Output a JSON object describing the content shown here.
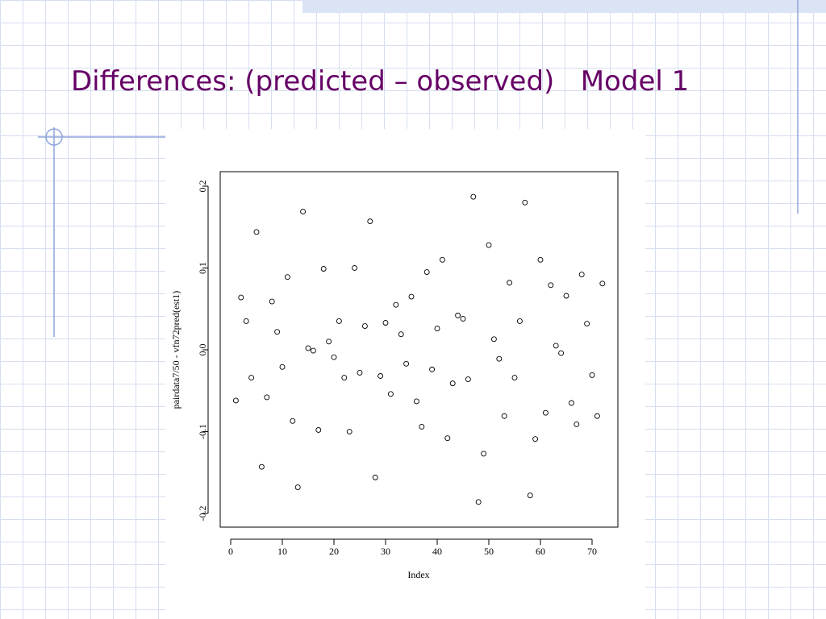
{
  "chart_data": {
    "type": "scatter",
    "title": "Differences: (predicted – observed)   Model 1",
    "xlabel": "Index",
    "ylabel": "pairdata7/50 - vfn72pred(est1)",
    "x": [
      1,
      2,
      3,
      4,
      5,
      6,
      7,
      8,
      9,
      10,
      11,
      12,
      13,
      14,
      15,
      16,
      17,
      18,
      19,
      20,
      21,
      22,
      23,
      24,
      25,
      26,
      27,
      28,
      29,
      30,
      31,
      32,
      33,
      34,
      35,
      36,
      37,
      38,
      39,
      40,
      41,
      42,
      43,
      44,
      45,
      46,
      47,
      48,
      49,
      50,
      51,
      52,
      53,
      54,
      55,
      56,
      57,
      58,
      59,
      60,
      61,
      62,
      63,
      64,
      65,
      66,
      67,
      68,
      69,
      70,
      71,
      72
    ],
    "series": [
      {
        "color": "#000000",
        "values": [
          -0.062,
          0.064,
          0.035,
          -0.034,
          0.144,
          -0.143,
          -0.058,
          0.059,
          0.022,
          -0.021,
          0.089,
          -0.087,
          -0.168,
          0.169,
          0.002,
          -0.001,
          -0.098,
          0.099,
          0.01,
          -0.009,
          0.035,
          -0.034,
          -0.1,
          0.1,
          -0.028,
          0.029,
          0.157,
          -0.156,
          -0.032,
          0.033,
          -0.054,
          0.055,
          0.019,
          -0.017,
          0.065,
          -0.063,
          -0.094,
          0.095,
          -0.024,
          0.026,
          0.11,
          -0.108,
          -0.041,
          0.042,
          0.038,
          -0.036,
          0.187,
          -0.186,
          -0.127,
          0.128,
          0.013,
          -0.011,
          -0.081,
          0.082,
          -0.034,
          0.035,
          0.18,
          -0.178,
          -0.109,
          0.11,
          -0.077,
          0.079,
          0.005,
          -0.004,
          0.066,
          -0.065,
          -0.091,
          0.092,
          0.032,
          -0.031,
          -0.081,
          0.081
        ]
      }
    ],
    "xlim": [
      -2.03,
      75.0
    ],
    "ylim": [
      -0.2167,
      0.2177
    ],
    "xticks": [
      0,
      10,
      20,
      30,
      40,
      50,
      60,
      70
    ],
    "yticks": [
      -0.2,
      -0.1,
      {
        "value": 0,
        "label": "0.0"
      },
      0.1,
      0.2
    ]
  }
}
